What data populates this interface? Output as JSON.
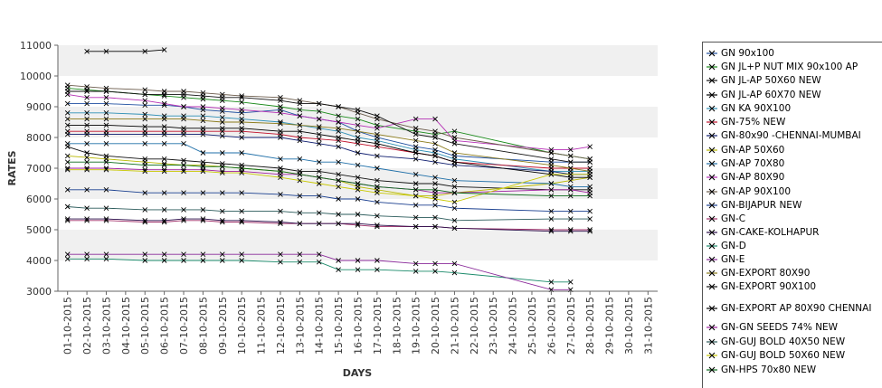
{
  "chart_data": {
    "type": "line",
    "title": "",
    "xlabel": "DAYS",
    "ylabel": "RATES",
    "ylim": [
      3000,
      11000
    ],
    "yticks": [
      3000,
      4000,
      5000,
      6000,
      7000,
      8000,
      9000,
      10000,
      11000
    ],
    "grid": "horizontal bands",
    "legend": "right",
    "x_categories": [
      "01-10-2015",
      "02-10-2015",
      "03-10-2015",
      "04-10-2015",
      "05-10-2015",
      "06-10-2015",
      "07-10-2015",
      "08-10-2015",
      "09-10-2015",
      "10-10-2015",
      "11-10-2015",
      "12-10-2015",
      "13-10-2015",
      "14-10-2015",
      "15-10-2015",
      "16-10-2015",
      "17-10-2015",
      "18-10-2015",
      "19-10-2015",
      "20-10-2015",
      "21-10-2015",
      "22-10-2015",
      "23-10-2015",
      "24-10-2015",
      "25-10-2015",
      "26-10-2015",
      "27-10-2015",
      "28-10-2015",
      "29-10-2015",
      "30-10-2015",
      "31-10-2015"
    ],
    "series": [
      {
        "name": "GN 90x100",
        "color": "#1f4fa0",
        "values": [
          9100,
          9100,
          9100,
          null,
          9050,
          9050,
          9000,
          8900,
          8850,
          8800,
          null,
          8900,
          8700,
          8600,
          8500,
          8200,
          8000,
          null,
          7700,
          7600,
          7400,
          null,
          null,
          null,
          null,
          7200,
          7200,
          7200,
          null,
          null,
          null
        ]
      },
      {
        "name": "GN JL+P NUT MIX 90x100 AP",
        "color": "#1a8a1a",
        "values": [
          9600,
          9550,
          9500,
          null,
          9400,
          9350,
          9300,
          9250,
          9200,
          9150,
          null,
          9000,
          8900,
          8850,
          8700,
          8600,
          8400,
          null,
          8200,
          8100,
          8200,
          null,
          null,
          null,
          null,
          7500,
          7400,
          7300,
          null,
          null,
          null
        ]
      },
      {
        "name": "GN JL-AP 50X60 NEW",
        "color": "#111111",
        "values": [
          7700,
          7500,
          7400,
          null,
          7300,
          7300,
          7250,
          7200,
          7150,
          7100,
          null,
          7000,
          6900,
          6900,
          6800,
          6700,
          6600,
          null,
          6500,
          6500,
          6400,
          null,
          null,
          null,
          null,
          6300,
          6300,
          6300,
          null,
          null,
          null
        ]
      },
      {
        "name": "GN JL-AP 60X70 NEW",
        "color": "#000000",
        "values": [
          null,
          10800,
          10800,
          null,
          10800,
          10850,
          null,
          null,
          null,
          null,
          null,
          null,
          null,
          null,
          null,
          null,
          null,
          null,
          null,
          null,
          null,
          null,
          null,
          null,
          null,
          null,
          null,
          null,
          null,
          null,
          null
        ]
      },
      {
        "name": "GN KA 90X100",
        "color": "#2e8fb5",
        "values": [
          8800,
          8800,
          8800,
          null,
          8750,
          8700,
          8700,
          8700,
          8650,
          8600,
          null,
          8500,
          8400,
          8300,
          8200,
          8000,
          7900,
          null,
          7600,
          7500,
          7300,
          null,
          null,
          null,
          null,
          6900,
          6900,
          6900,
          null,
          null,
          null
        ]
      },
      {
        "name": "GN-75% NEW",
        "color": "#c0102a",
        "values": [
          8200,
          8200,
          8200,
          null,
          8200,
          8200,
          8200,
          8200,
          8200,
          8200,
          null,
          8100,
          8000,
          7950,
          7900,
          7800,
          7700,
          null,
          7500,
          7400,
          7200,
          null,
          null,
          null,
          null,
          7000,
          7000,
          7000,
          null,
          null,
          null
        ]
      },
      {
        "name": "GN-80x90 -CHENNAI-MUMBAI",
        "color": "#0d1c6e",
        "values": [
          8100,
          8100,
          8100,
          null,
          8100,
          8100,
          8100,
          8100,
          8050,
          8000,
          null,
          8000,
          7900,
          7800,
          7700,
          7500,
          7400,
          null,
          7300,
          7200,
          7100,
          null,
          null,
          null,
          null,
          6900,
          6800,
          6800,
          null,
          null,
          null
        ]
      },
      {
        "name": "GN-AP 50X60",
        "color": "#b8b800",
        "values": [
          7400,
          7350,
          7300,
          null,
          7200,
          7150,
          7100,
          7100,
          7050,
          7000,
          null,
          6900,
          6800,
          6700,
          6600,
          6400,
          6300,
          null,
          6100,
          6100,
          6200,
          null,
          null,
          null,
          null,
          6500,
          6600,
          6700,
          null,
          null,
          null
        ]
      },
      {
        "name": "GN-AP 70X80",
        "color": "#1f6fa8",
        "values": [
          7800,
          7800,
          7800,
          null,
          7800,
          7800,
          7800,
          7500,
          7500,
          7500,
          null,
          7300,
          7300,
          7200,
          7200,
          7100,
          7000,
          null,
          6800,
          6700,
          6600,
          null,
          null,
          null,
          null,
          6500,
          6400,
          6400,
          null,
          null,
          null
        ]
      },
      {
        "name": "GN-AP 80X90",
        "color": "#b52fb5",
        "values": [
          9400,
          9300,
          9300,
          null,
          9200,
          9100,
          9000,
          9000,
          8950,
          8900,
          null,
          8800,
          8700,
          8600,
          8500,
          8400,
          8300,
          null,
          8600,
          8600,
          7900,
          null,
          null,
          null,
          null,
          7600,
          7600,
          7700,
          null,
          null,
          null
        ]
      },
      {
        "name": "GN-AP 90X100",
        "color": "#6b5b4b",
        "values": [
          9700,
          9650,
          9600,
          null,
          9550,
          9500,
          9500,
          9450,
          9400,
          9350,
          null,
          9300,
          9200,
          9100,
          9000,
          8800,
          8600,
          null,
          8300,
          8200,
          8000,
          null,
          null,
          null,
          null,
          7500,
          7400,
          7300,
          null,
          null,
          null
        ]
      },
      {
        "name": "GN-BIJAPUR NEW",
        "color": "#1a3f8f",
        "values": [
          6300,
          6300,
          6300,
          null,
          6200,
          6200,
          6200,
          6200,
          6200,
          6200,
          null,
          6150,
          6100,
          6100,
          6000,
          6000,
          5900,
          null,
          5800,
          5800,
          5700,
          null,
          null,
          null,
          null,
          5600,
          5600,
          5600,
          null,
          null,
          null
        ]
      },
      {
        "name": "GN-C",
        "color": "#a0306a",
        "values": [
          5300,
          5300,
          5300,
          null,
          5250,
          5250,
          5300,
          5300,
          5250,
          5250,
          null,
          5200,
          5200,
          5200,
          5200,
          5150,
          5100,
          null,
          5100,
          5100,
          5050,
          null,
          null,
          null,
          null,
          5000,
          5000,
          5000,
          null,
          null,
          null
        ]
      },
      {
        "name": "GN-CAKE-KOLHAPUR",
        "color": "#2a0d4a",
        "values": [
          5350,
          5350,
          5350,
          null,
          5300,
          5300,
          5350,
          5350,
          5300,
          5300,
          null,
          5250,
          5200,
          5200,
          5200,
          5200,
          5150,
          null,
          5100,
          5100,
          5050,
          null,
          null,
          null,
          null,
          4950,
          4950,
          4950,
          null,
          null,
          null
        ]
      },
      {
        "name": "GN-D",
        "color": "#1a8a6a",
        "values": [
          4050,
          4050,
          4050,
          null,
          4000,
          4000,
          4000,
          4000,
          4000,
          4000,
          null,
          3950,
          3950,
          3950,
          3700,
          3700,
          3700,
          null,
          3650,
          3650,
          3600,
          null,
          null,
          null,
          null,
          3300,
          3300,
          null,
          null,
          null,
          null
        ]
      },
      {
        "name": "GN-E",
        "color": "#8a2a9a",
        "values": [
          4200,
          4200,
          4200,
          null,
          4200,
          4200,
          4200,
          4200,
          4200,
          4200,
          null,
          4200,
          4200,
          4200,
          4000,
          4000,
          4000,
          null,
          3900,
          3900,
          3900,
          null,
          null,
          null,
          null,
          3050,
          3050,
          null,
          null,
          null,
          null
        ]
      },
      {
        "name": "GN-EXPORT 80X90",
        "color": "#8a7a1a",
        "values": [
          8600,
          8600,
          8600,
          null,
          8600,
          8600,
          8600,
          8550,
          8500,
          8500,
          null,
          8450,
          8400,
          8350,
          8300,
          8200,
          8100,
          null,
          7900,
          7800,
          7500,
          null,
          null,
          null,
          null,
          7100,
          7000,
          6900,
          null,
          null,
          null
        ]
      },
      {
        "name": "GN-EXPORT 90X100",
        "color": "#111111",
        "values": [
          9500,
          9500,
          9500,
          null,
          9400,
          9400,
          9400,
          9350,
          9300,
          9300,
          null,
          9200,
          9100,
          9100,
          9000,
          8900,
          8700,
          null,
          8100,
          8000,
          7800,
          null,
          null,
          null,
          null,
          7300,
          7200,
          7200,
          null,
          null,
          null
        ]
      },
      {
        "name": "GN-EXPORT AP 80X90 CHENNAI",
        "color": "#000000",
        "values": [
          8400,
          8400,
          8400,
          null,
          8350,
          8350,
          8300,
          8300,
          8300,
          8300,
          null,
          8200,
          8200,
          8100,
          8000,
          7900,
          7800,
          null,
          7500,
          7400,
          7200,
          null,
          null,
          null,
          null,
          6800,
          6700,
          6700,
          null,
          null,
          null
        ]
      },
      {
        "name": "GN-GN SEEDS 74% NEW",
        "color": "#a020a0",
        "values": [
          7000,
          7000,
          7000,
          null,
          6950,
          6950,
          6950,
          6950,
          6900,
          6900,
          null,
          6800,
          6800,
          6700,
          6600,
          6500,
          6400,
          null,
          6300,
          6200,
          6200,
          null,
          null,
          null,
          null,
          6300,
          6300,
          6200,
          null,
          null,
          null
        ]
      },
      {
        "name": "GN-GUJ BOLD 40X50 NEW",
        "color": "#2a5a5a",
        "values": [
          5750,
          5700,
          5700,
          null,
          5650,
          5650,
          5650,
          5650,
          5600,
          5600,
          null,
          5600,
          5550,
          5550,
          5500,
          5500,
          5450,
          null,
          5400,
          5400,
          5300,
          null,
          null,
          null,
          null,
          5350,
          5350,
          5350,
          null,
          null,
          null
        ]
      },
      {
        "name": "GN-GUJ BOLD 50X60 NEW",
        "color": "#c8c800",
        "values": [
          6950,
          6950,
          6950,
          null,
          6900,
          6900,
          6900,
          6900,
          6850,
          6850,
          null,
          6700,
          6600,
          6500,
          6400,
          6300,
          6200,
          null,
          6100,
          6000,
          5900,
          null,
          null,
          null,
          null,
          6800,
          6800,
          6800,
          null,
          null,
          null
        ]
      },
      {
        "name": "GN-HPS  70x80 NEW",
        "color": "#0a6a1a",
        "values": [
          7200,
          7200,
          7200,
          null,
          7100,
          7100,
          7100,
          7050,
          7050,
          7000,
          null,
          6900,
          6800,
          6700,
          6600,
          6500,
          6400,
          null,
          6300,
          6300,
          6200,
          null,
          null,
          null,
          null,
          6100,
          6100,
          6100,
          null,
          null,
          null
        ]
      }
    ]
  }
}
